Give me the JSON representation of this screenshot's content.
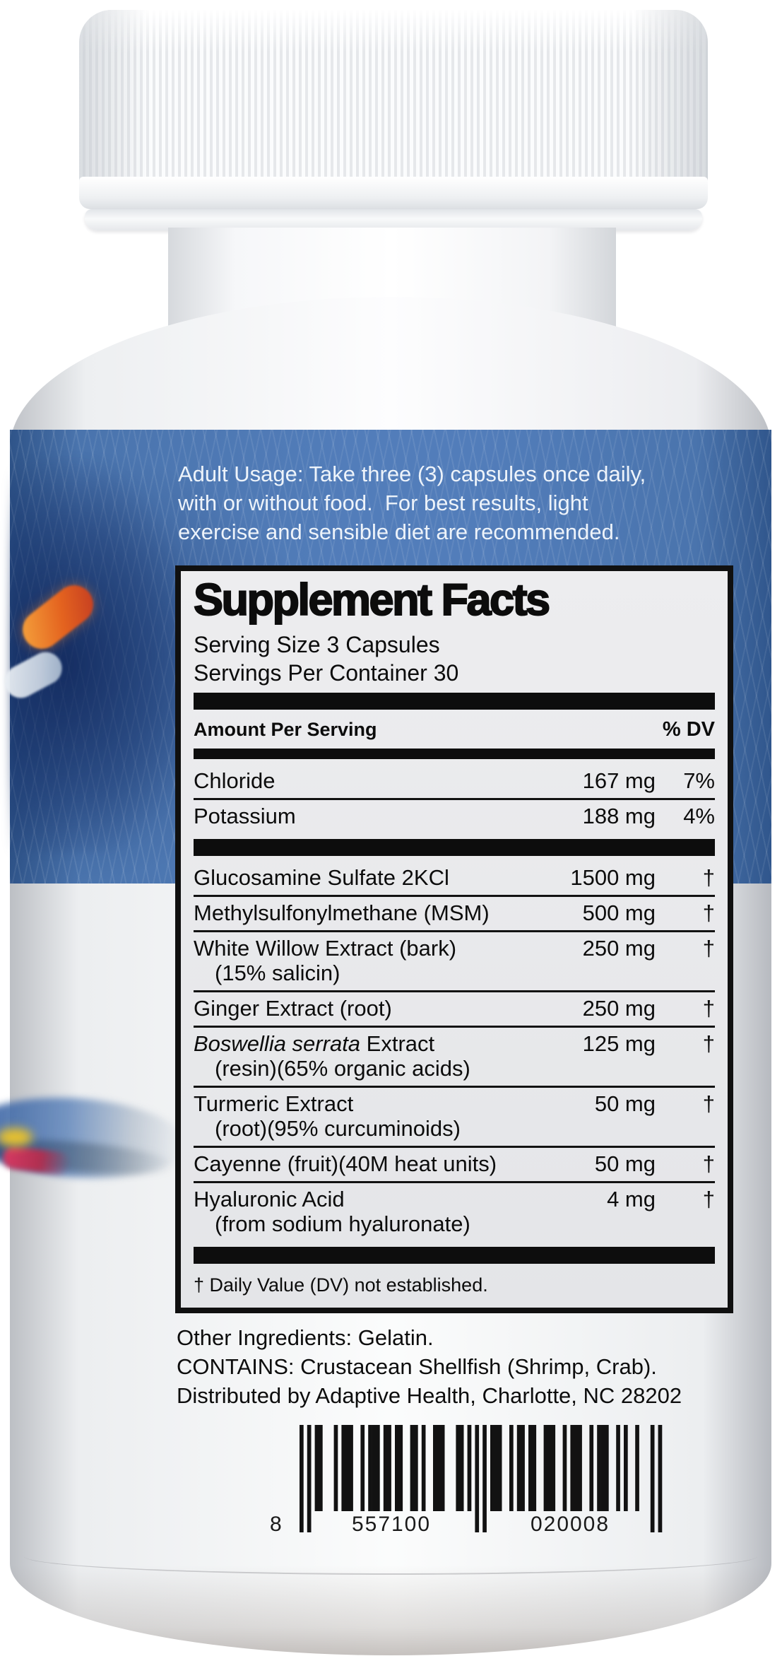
{
  "usage": {
    "lines": [
      "Adult Usage: Take three (3) capsules once daily,",
      "with or without food.  For best results, light",
      "exercise and sensible diet are recommended."
    ]
  },
  "panel": {
    "title": "Supplement Facts",
    "serving_size": "Serving Size 3 Capsules",
    "servings_per_container": "Servings Per Container 30",
    "header": {
      "amount_label": "Amount Per Serving",
      "dv_label": "% DV"
    },
    "mineral_rows": [
      {
        "name": "Chloride",
        "amount": "167 mg",
        "dv": "7%"
      },
      {
        "name": "Potassium",
        "amount": "188 mg",
        "dv": "4%"
      }
    ],
    "herb_rows": [
      {
        "name": "Glucosamine Sulfate 2KCl",
        "amount": "1500 mg",
        "dv": "†"
      },
      {
        "name": "Methylsulfonylmethane (MSM)",
        "amount": "500 mg",
        "dv": "†"
      },
      {
        "name": "White Willow Extract (bark)",
        "sub": "(15% salicin)",
        "amount": "250 mg",
        "dv": "†"
      },
      {
        "name": "Ginger Extract (root)",
        "amount": "250 mg",
        "dv": "†"
      },
      {
        "name_italic": "Boswellia serrata",
        "name_rest": " Extract",
        "sub": "(resin)(65% organic acids)",
        "amount": "125 mg",
        "dv": "†"
      },
      {
        "name": "Turmeric Extract",
        "sub": "(root)(95% curcuminoids)",
        "amount": "50 mg",
        "dv": "†"
      },
      {
        "name": "Cayenne (fruit)(40M heat units)",
        "amount": "50 mg",
        "dv": "†"
      },
      {
        "name": "Hyaluronic Acid",
        "sub": "(from sodium hyaluronate)",
        "amount": "4 mg",
        "dv": "†"
      }
    ],
    "footnote": "† Daily Value (DV) not established."
  },
  "other_info": {
    "other_ingredients": "Other Ingredients: Gelatin.",
    "contains": "CONTAINS: Crustacean Shellfish (Shrimp, Crab).",
    "distributed_by": "Distributed by Adaptive Health, Charlotte, NC 28202"
  },
  "barcode": {
    "value": "8557100020008",
    "left_digit": "8",
    "group1": "557100",
    "group2": "020008"
  },
  "colors": {
    "band_blue": "#527dba",
    "band_navy": "#1b3a72",
    "panel_bg": "#e9eaec",
    "text_black": "#0d0d0d",
    "bottle_white": "#f7f8fa",
    "accent_orange": "#e4631f",
    "accent_red": "#d63a64",
    "accent_yellow": "#e6c02e"
  }
}
